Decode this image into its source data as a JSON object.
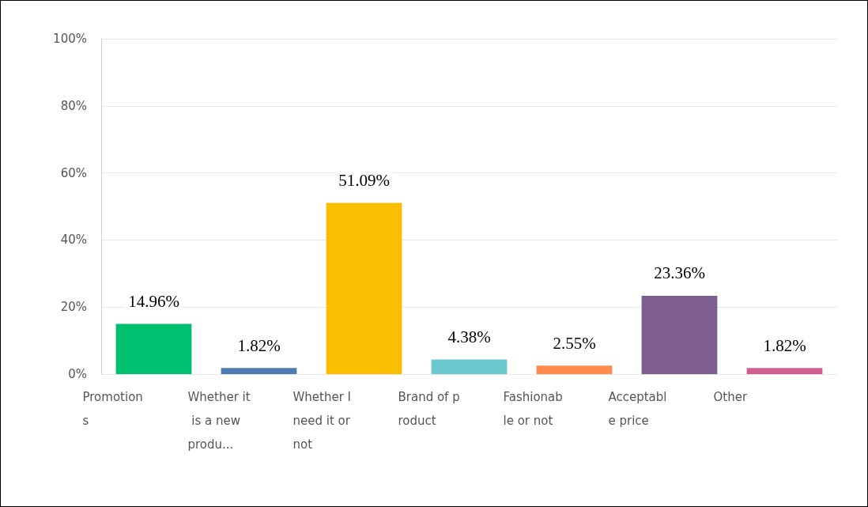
{
  "chart_data": {
    "type": "bar",
    "categories": [
      "Promotions",
      "Whether it is a new produ...",
      "Whether I need it or not",
      "Brand of product",
      "Fashionable or not",
      "Acceptable price",
      "Other"
    ],
    "values": [
      14.96,
      1.82,
      51.09,
      4.38,
      2.55,
      23.36,
      1.82
    ],
    "value_labels": [
      "14.96%",
      "1.82%",
      "51.09%",
      "4.38%",
      "2.55%",
      "23.36%",
      "1.82%"
    ],
    "colors": [
      "#00bf6f",
      "#507cb6",
      "#f9be00",
      "#6bc8cd",
      "#ff8b4f",
      "#7d5e90",
      "#d25f90"
    ],
    "ylim": [
      0,
      100
    ],
    "yticks": [
      {
        "value": 0,
        "label": "0%"
      },
      {
        "value": 20,
        "label": "20%"
      },
      {
        "value": 40,
        "label": "40%"
      },
      {
        "value": 60,
        "label": "60%"
      },
      {
        "value": 80,
        "label": "80%"
      },
      {
        "value": 100,
        "label": "100%"
      }
    ],
    "grid": "y"
  }
}
